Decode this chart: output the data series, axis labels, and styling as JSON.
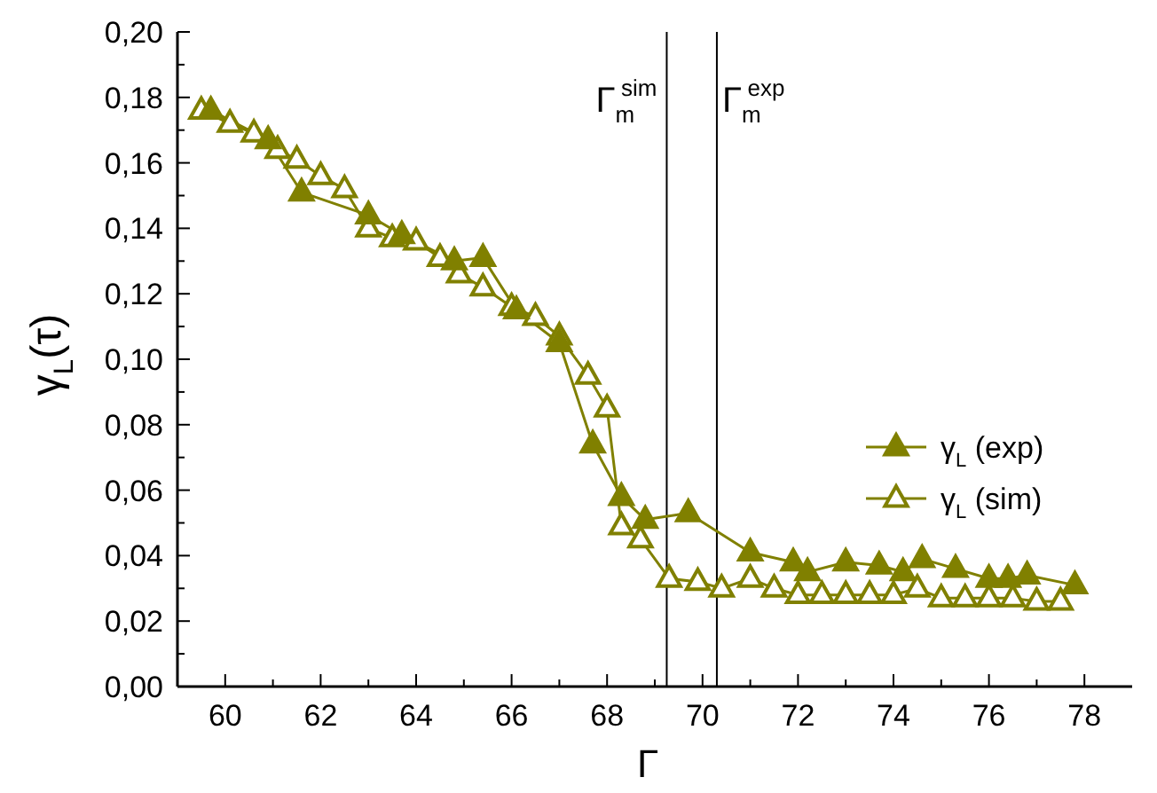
{
  "chart_data": {
    "type": "line",
    "xlabel": "Γ",
    "ylabel": "γ$_{L}$(τ)",
    "xlim": [
      59,
      79
    ],
    "xticks": [
      60,
      {
        "value": 61,
        "label": null
      },
      62,
      {
        "value": 63,
        "label": null
      },
      64,
      {
        "value": 65,
        "label": null
      },
      66,
      {
        "value": 67,
        "label": null
      },
      68,
      {
        "value": 69,
        "label": null
      },
      70,
      {
        "value": 71,
        "label": null
      },
      72,
      {
        "value": 73,
        "label": null
      },
      74,
      {
        "value": 75,
        "label": null
      },
      76,
      {
        "value": 77,
        "label": null
      },
      78
    ],
    "ylim": [
      0,
      0.2
    ],
    "yticks": [
      {
        "value": 0,
        "label": "0,00"
      },
      {
        "value": 0.01,
        "label": null
      },
      {
        "value": 0.02,
        "label": "0,02"
      },
      {
        "value": 0.03,
        "label": null
      },
      {
        "value": 0.04,
        "label": "0,04"
      },
      {
        "value": 0.05,
        "label": null
      },
      {
        "value": 0.06,
        "label": "0,06"
      },
      {
        "value": 0.07,
        "label": null
      },
      {
        "value": 0.08,
        "label": "0,08"
      },
      {
        "value": 0.09,
        "label": null
      },
      {
        "value": 0.1,
        "label": "0,10"
      },
      {
        "value": 0.11,
        "label": null
      },
      {
        "value": 0.12,
        "label": "0,12"
      },
      {
        "value": 0.13,
        "label": null
      },
      {
        "value": 0.14,
        "label": "0,14"
      },
      {
        "value": 0.15,
        "label": null
      },
      {
        "value": 0.16,
        "label": "0,16"
      },
      {
        "value": 0.17,
        "label": null
      },
      {
        "value": 0.18,
        "label": "0,18"
      },
      {
        "value": 0.19,
        "label": null
      },
      {
        "value": 0.2,
        "label": "0,20"
      }
    ],
    "grid": false,
    "legend": "right",
    "marker": "triangle",
    "line_style": "solid",
    "ref_lines": [
      {
        "axis": "x",
        "value": 69.25,
        "label": "Γ$_{m}$$^{sim}$",
        "color": "#000000"
      },
      {
        "axis": "x",
        "value": 70.3,
        "label": "Γ$_{m}$$^{exp}$",
        "color": "#000000"
      }
    ],
    "series": [
      {
        "name": "γ$_{L}$ (exp)",
        "color": "#808000",
        "x": [
          59.7,
          60.9,
          61.6,
          63.0,
          63.7,
          64.8,
          65.4,
          66.1,
          67.0,
          67.7,
          68.3,
          68.8,
          69.7,
          71.0,
          71.9,
          72.2,
          73.0,
          73.7,
          74.2,
          74.6,
          75.3,
          76.0,
          76.4,
          76.8,
          77.8
        ],
        "values": [
          0.176,
          0.167,
          0.151,
          0.144,
          0.138,
          0.13,
          0.131,
          0.115,
          0.105,
          0.074,
          0.058,
          0.051,
          0.053,
          0.041,
          0.038,
          0.035,
          0.038,
          0.037,
          0.035,
          0.039,
          0.036,
          0.033,
          0.033,
          0.034,
          0.031
        ]
      },
      {
        "name": "γ$_{L}$ (sim)",
        "color": "#808000",
        "x": [
          59.5,
          60.1,
          60.6,
          61.1,
          61.5,
          62.0,
          62.5,
          63.0,
          63.5,
          64.0,
          64.5,
          64.9,
          65.4,
          66.0,
          66.5,
          67.0,
          67.6,
          68.0,
          68.3,
          68.7,
          69.3,
          69.9,
          70.4,
          71.0,
          71.5,
          72.0,
          72.5,
          73.0,
          73.5,
          74.0,
          74.5,
          75.0,
          75.5,
          76.0,
          76.5,
          77.0,
          77.5
        ],
        "values": [
          0.176,
          0.172,
          0.169,
          0.164,
          0.161,
          0.156,
          0.152,
          0.14,
          0.137,
          0.136,
          0.131,
          0.126,
          0.122,
          0.116,
          0.113,
          0.107,
          0.095,
          0.085,
          0.049,
          0.045,
          0.033,
          0.032,
          0.03,
          0.033,
          0.03,
          0.028,
          0.028,
          0.028,
          0.028,
          0.028,
          0.03,
          0.027,
          0.027,
          0.027,
          0.027,
          0.026,
          0.026
        ]
      }
    ]
  }
}
